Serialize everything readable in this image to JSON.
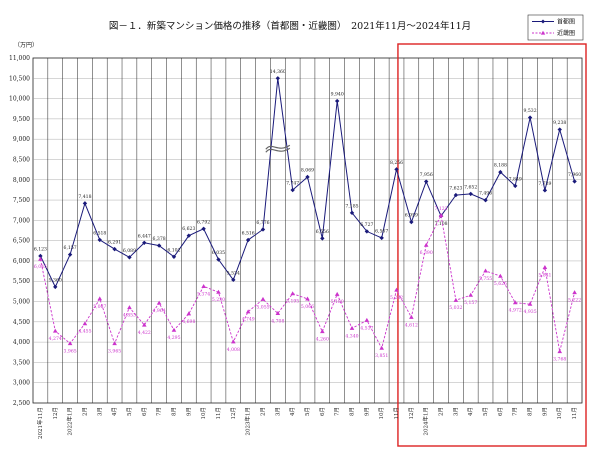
{
  "chart_data": {
    "type": "line",
    "title": "図－１．新築マンション価格の推移（首都圏・近畿圏）　2021年11月～2024年11月",
    "ylabel": "（万円）",
    "xlabel": "",
    "ylim": [
      2500,
      11000
    ],
    "yticks": [
      2500,
      3000,
      3500,
      4000,
      4500,
      5000,
      5500,
      6000,
      6500,
      7000,
      7500,
      8000,
      8500,
      9000,
      9500,
      10000,
      10500,
      11000
    ],
    "categories": [
      "2021年11月",
      "12月",
      "2022年1月",
      "2月",
      "3月",
      "4月",
      "5月",
      "6月",
      "7月",
      "8月",
      "9月",
      "10月",
      "11月",
      "12月",
      "2023年1月",
      "2月",
      "3月",
      "4月",
      "5月",
      "6月",
      "7月",
      "8月",
      "9月",
      "10月",
      "11月",
      "12月",
      "2024年1月",
      "2月",
      "3月",
      "4月",
      "5月",
      "6月",
      "7月",
      "8月",
      "9月",
      "10月",
      "11月"
    ],
    "legend_position": "top-right",
    "highlight_range": {
      "from": 25,
      "to": 36,
      "color": "#dd2222"
    },
    "broken_axis_point": {
      "series": 0,
      "index": 16,
      "display_value": 10500
    },
    "series": [
      {
        "name": "首都圏",
        "color": "#1a1a7a",
        "values": [
          6123,
          5360,
          6157,
          7418,
          6518,
          6291,
          6089,
          6447,
          6378,
          6102,
          6623,
          6792,
          6035,
          5534,
          6516,
          6776,
          14360,
          7747,
          8069,
          6556,
          9940,
          7185,
          6727,
          6567,
          8256,
          6959,
          7956,
          7108,
          7623,
          7652,
          7496,
          8188,
          7849,
          9532,
          7739,
          9238,
          7960
        ],
        "labels": [
          "6,123",
          "5,360",
          "6,157",
          "7,418",
          "6,518",
          "6,291",
          "6,089",
          "6,447",
          "6,378",
          "6,102",
          "6,623",
          "6,792",
          "6,035",
          "5,534",
          "6,516",
          "6,776",
          "14,360",
          "7,747",
          "8,069",
          "6,556",
          "9,940",
          "7,185",
          "6,727",
          "6,567",
          "8,256",
          "6,959",
          "7,956",
          "7,108",
          "7,623",
          "7,652",
          "7,496",
          "8,188",
          "7,849",
          "9,532",
          "7,739",
          "9,238",
          "7,960"
        ]
      },
      {
        "name": "近畿圏",
        "color": "#cc33cc",
        "values": [
          6045,
          4274,
          3965,
          4455,
          5067,
          3965,
          4853,
          4422,
          4964,
          4295,
          4698,
          5374,
          5230,
          4008,
          4749,
          5055,
          4708,
          5195,
          5066,
          4260,
          5180,
          4340,
          4537,
          3851,
          5282,
          4612,
          6390,
          7122,
          5032,
          5157,
          5755,
          5626,
          4972,
          4935,
          5841,
          3768,
          5222
        ],
        "labels": [
          "6,045",
          "4,274",
          "3,965",
          "4,455",
          "5,067",
          "3,965",
          "4,853",
          "4,422",
          "4,964",
          "4,295",
          "4,698",
          "5,374",
          "5,230",
          "4,008",
          "4,749",
          "5,055",
          "4,708",
          "5,195",
          "5,066",
          "4,260",
          "5,180",
          "4,340",
          "4,537",
          "3,851",
          "5,282",
          "4,612",
          "6,390",
          "7,122",
          "5,032",
          "5,157",
          "5,755",
          "5,626",
          "4,972",
          "4,935",
          "5,841",
          "3,768",
          "5,222"
        ]
      }
    ]
  }
}
